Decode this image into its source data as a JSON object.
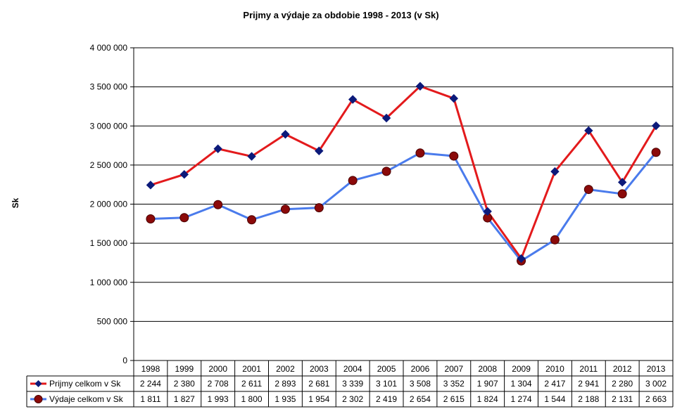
{
  "chart_data": {
    "type": "line",
    "title": "Prijmy a výdaje za obdobie 1998  - 2013 (v  Sk)",
    "ylabel": "Sk",
    "xlabel": "",
    "ylim": [
      0,
      4000000
    ],
    "y_ticks": [
      "0",
      "500 000",
      "1 000 000",
      "1 500 000",
      "2 000 000",
      "2 500 000",
      "3 000 000",
      "3 500 000",
      "4 000 000"
    ],
    "y_tick_values": [
      0,
      500000,
      1000000,
      1500000,
      2000000,
      2500000,
      3000000,
      3500000,
      4000000
    ],
    "grid": true,
    "legend_placement": "data-table",
    "categories": [
      "1998",
      "1999",
      "2000",
      "2001",
      "2002",
      "2003",
      "2004",
      "2005",
      "2006",
      "2007",
      "2008",
      "2009",
      "2010",
      "2011",
      "2012",
      "2013"
    ],
    "series": [
      {
        "name": "Prijmy celkom v Sk",
        "line_color": "#e31a1c",
        "marker_color": "#0c1a7a",
        "marker": "diamond",
        "values": [
          2244000,
          2380000,
          2708000,
          2611000,
          2893000,
          2681000,
          3339000,
          3101000,
          3508000,
          3352000,
          1907000,
          1304000,
          2417000,
          2941000,
          2280000,
          3002000
        ],
        "labels": [
          "2 244",
          "2 380",
          "2 708",
          "2 611",
          "2 893",
          "2 681",
          "3 339",
          "3 101",
          "3 508",
          "3 352",
          "1 907",
          "1 304",
          "2 417",
          "2 941",
          "2 280",
          "3 002"
        ]
      },
      {
        "name": "Výdaje celkom v Sk",
        "line_color": "#4a7bec",
        "marker_color": "#8b0a0a",
        "marker": "circle",
        "values": [
          1811000,
          1827000,
          1993000,
          1800000,
          1935000,
          1954000,
          2302000,
          2419000,
          2654000,
          2615000,
          1824000,
          1274000,
          1544000,
          2188000,
          2131000,
          2663000
        ],
        "labels": [
          "1 811",
          "1 827",
          "1 993",
          "1 800",
          "1 935",
          "1 954",
          "2 302",
          "2 419",
          "2 654",
          "2 615",
          "1 824",
          "1 274",
          "1 544",
          "2 188",
          "2 131",
          "2 663"
        ]
      }
    ]
  }
}
